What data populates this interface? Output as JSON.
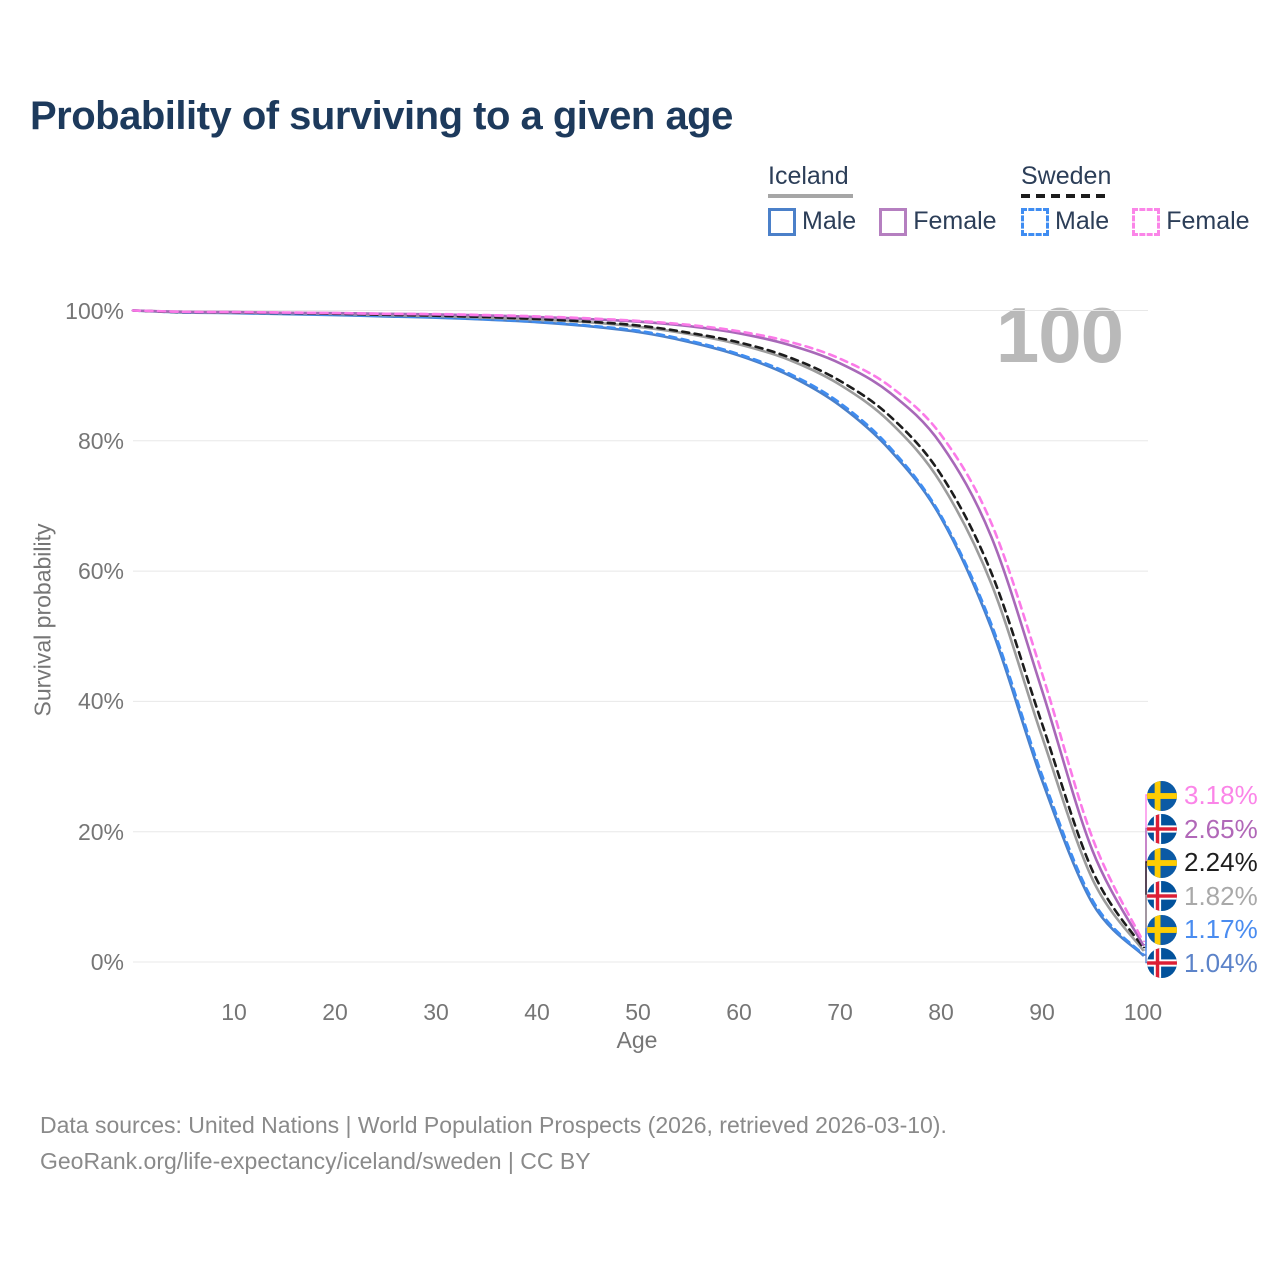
{
  "title": "Probability of surviving to a given age",
  "watermark": "100",
  "legend": {
    "groups": [
      {
        "title": "Iceland",
        "line_style": "solid",
        "underline_color": "#a6a6a6",
        "entries": [
          {
            "label": "Male",
            "color": "#4b80c9",
            "dash": false
          },
          {
            "label": "Female",
            "color": "#a868b8",
            "dash": false
          }
        ]
      },
      {
        "title": "Sweden",
        "line_style": "dashed",
        "underline_color": "#1c1c1c",
        "entries": [
          {
            "label": "Male",
            "color": "#3f8df2",
            "dash": true
          },
          {
            "label": "Female",
            "color": "#fb7ae8",
            "dash": true
          }
        ]
      }
    ]
  },
  "chart_data": {
    "type": "line",
    "title": "Probability of surviving to a given age",
    "xlabel": "Age",
    "ylabel": "Survival probability",
    "xlim": [
      0,
      100
    ],
    "ylim": [
      0,
      100
    ],
    "grid": "horizontal",
    "legend_position": "top-right",
    "hover_age_indicator": "100",
    "xticks": [
      10,
      20,
      30,
      40,
      50,
      60,
      70,
      80,
      90,
      100
    ],
    "yticks": [
      {
        "label": "100%",
        "value": 100
      },
      {
        "label": "80%",
        "value": 80
      },
      {
        "label": "60%",
        "value": 60
      },
      {
        "label": "40%",
        "value": 40
      },
      {
        "label": "20%",
        "value": 20
      },
      {
        "label": "0%",
        "value": 0
      }
    ],
    "x_ages": [
      0,
      5,
      10,
      15,
      20,
      25,
      30,
      35,
      40,
      45,
      50,
      55,
      60,
      65,
      70,
      75,
      80,
      85,
      90,
      95,
      100
    ],
    "series": [
      {
        "name": "Iceland Male",
        "country": "Iceland",
        "sex": "male",
        "color": "#4b80c9",
        "dash": false,
        "values": [
          100,
          99.7,
          99.6,
          99.45,
          99.3,
          99.1,
          98.9,
          98.6,
          98.2,
          97.6,
          96.7,
          95.2,
          93.1,
          90.0,
          85.4,
          78.5,
          68.2,
          51.2,
          27.9,
          9.0,
          1.04
        ]
      },
      {
        "name": "Sweden Male",
        "country": "Sweden",
        "sex": "male",
        "color": "#3f8df2",
        "dash": true,
        "values": [
          100,
          99.7,
          99.65,
          99.5,
          99.35,
          99.15,
          98.95,
          98.65,
          98.3,
          97.7,
          96.9,
          95.4,
          93.3,
          90.3,
          85.8,
          78.9,
          68.5,
          51.8,
          28.7,
          9.5,
          1.17
        ]
      },
      {
        "name": "Iceland Total",
        "country": "Iceland",
        "sex": "total",
        "color": "#9c9c9c",
        "dash": false,
        "values": [
          100,
          99.75,
          99.7,
          99.6,
          99.5,
          99.3,
          99.15,
          98.9,
          98.6,
          98.2,
          97.5,
          96.4,
          94.8,
          92.4,
          88.6,
          82.8,
          73.5,
          58.0,
          34.6,
          12.7,
          1.82
        ]
      },
      {
        "name": "Sweden Total",
        "country": "Sweden",
        "sex": "total",
        "color": "#1c1c1c",
        "dash": true,
        "values": [
          100,
          99.75,
          99.7,
          99.6,
          99.5,
          99.35,
          99.2,
          99.0,
          98.7,
          98.3,
          97.7,
          96.6,
          95.1,
          92.8,
          89.2,
          83.7,
          74.8,
          59.7,
          36.6,
          14.0,
          2.24
        ]
      },
      {
        "name": "Iceland Female",
        "country": "Iceland",
        "sex": "female",
        "color": "#a868b8",
        "dash": false,
        "values": [
          100,
          99.8,
          99.75,
          99.65,
          99.6,
          99.5,
          99.4,
          99.25,
          99.0,
          98.7,
          98.3,
          97.6,
          96.5,
          94.7,
          91.9,
          87.3,
          79.5,
          65.2,
          41.7,
          17.1,
          2.65
        ]
      },
      {
        "name": "Sweden Female",
        "country": "Sweden",
        "sex": "female",
        "color": "#fb7ae8",
        "dash": true,
        "values": [
          100,
          99.8,
          99.75,
          99.7,
          99.6,
          99.5,
          99.45,
          99.3,
          99.1,
          98.8,
          98.4,
          97.8,
          96.8,
          95.2,
          92.6,
          88.3,
          80.9,
          67.3,
          44.3,
          19.0,
          3.18
        ]
      }
    ]
  },
  "end_labels": [
    {
      "country": "Sweden",
      "series": "Sweden Female",
      "flag": "sweden",
      "label": "3.18%",
      "value": 3.18,
      "color": "#fb85e8"
    },
    {
      "country": "Iceland",
      "series": "Iceland Female",
      "flag": "iceland",
      "label": "2.65%",
      "value": 2.65,
      "color": "#b168b8"
    },
    {
      "country": "Sweden",
      "series": "Sweden Total",
      "flag": "sweden",
      "label": "2.24%",
      "value": 2.24,
      "color": "#1f1f1f"
    },
    {
      "country": "Iceland",
      "series": "Iceland Total",
      "flag": "iceland",
      "label": "1.82%",
      "value": 1.82,
      "color": "#a9a9a9"
    },
    {
      "country": "Sweden",
      "series": "Sweden Male",
      "flag": "sweden",
      "label": "1.17%",
      "value": 1.17,
      "color": "#4a8cf0"
    },
    {
      "country": "Iceland",
      "series": "Iceland Male",
      "flag": "iceland",
      "label": "1.04%",
      "value": 1.04,
      "color": "#5c83c9"
    }
  ],
  "footer": {
    "line1": "Data sources: United Nations | World Population Prospects (2026, retrieved 2026-03-10).",
    "line2": "GeoRank.org/life-expectancy/iceland/sweden | CC BY"
  }
}
